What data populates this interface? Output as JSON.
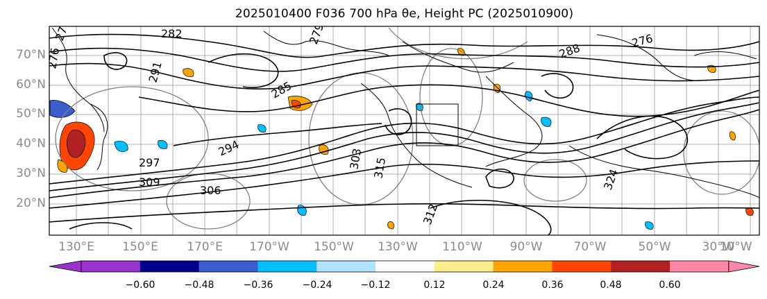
{
  "title": "2025010400 F036 700 hPa θe, Height PC (2025010900)",
  "lat_labels": [
    "70°N",
    "60°N",
    "50°N",
    "40°N",
    "30°N",
    "20°N"
  ],
  "lon_labels": [
    "130°E",
    "150°E",
    "170°E",
    "170°W",
    "150°W",
    "130°W",
    "110°W",
    "90°W",
    "70°W",
    "50°W",
    "30°W",
    "10°W"
  ],
  "colorbar": {
    "ticks": [
      "−0.60",
      "−0.48",
      "−0.36",
      "−0.24",
      "−0.12",
      "0.12",
      "0.24",
      "0.36",
      "0.48",
      "0.60"
    ],
    "colors": [
      "#9933cc",
      "#00008b",
      "#3a5fcd",
      "#00bfff",
      "#b0e2ff",
      "#ffffff",
      "#ffec8b",
      "#ffa500",
      "#ff4500",
      "#b22222",
      "#ff88aa",
      "#ff88aa"
    ]
  },
  "contour_labels": [
    "282",
    "276",
    "279",
    "291",
    "285",
    "288",
    "276",
    "294",
    "297",
    "309",
    "315",
    "306",
    "303",
    "312",
    "324",
    "276"
  ],
  "legend_colors": {
    "contour": "#000000",
    "height_pc": "#808080"
  }
}
